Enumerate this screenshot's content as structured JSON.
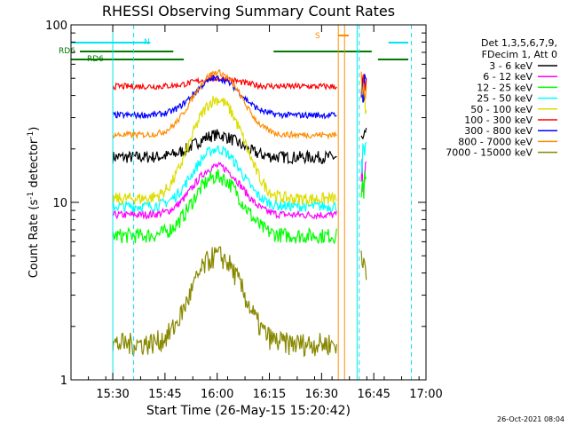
{
  "chart_data": {
    "type": "line",
    "title": "RHESSI Observing Summary Count Rates",
    "xlabel": "Start Time (26-May-15 15:20:42)",
    "ylabel": "Count Rate (s",
    "ylabel_sup": "-1",
    "ylabel_tail": " detector",
    "ylabel_end": ")",
    "yscale": "log",
    "xlim_minutes": [
      15.3,
      17.0
    ],
    "ylim": [
      1,
      100
    ],
    "x_ticks": [
      {
        "label": "15:30",
        "t": 15.5
      },
      {
        "label": "15:45",
        "t": 15.75
      },
      {
        "label": "16:00",
        "t": 16.0
      },
      {
        "label": "16:15",
        "t": 16.25
      },
      {
        "label": "16:30",
        "t": 16.5
      },
      {
        "label": "16:45",
        "t": 16.75
      },
      {
        "label": "17:00",
        "t": 17.0
      }
    ],
    "y_ticks": [
      {
        "label": "1",
        "v": 1
      },
      {
        "label": "10",
        "v": 10
      },
      {
        "label": "100",
        "v": 100
      }
    ],
    "legend_header": [
      "Det 1,3,5,6,7,9,",
      "FDecim 1, Att 0"
    ],
    "legend_position": "right",
    "timestamp": "26-Oct-2021 08:04",
    "flags": [
      {
        "label": "N",
        "color": "#00e5ee"
      },
      {
        "label": "RD6",
        "color": "#007a00"
      },
      {
        "label": "RD6",
        "color": "#007a00"
      },
      {
        "label": "S",
        "color": "#ff8c00"
      }
    ],
    "series": [
      {
        "name": "3 - 6 keV",
        "color": "#000000",
        "base": 18,
        "peak": 24,
        "noise": 0.08
      },
      {
        "name": "6 - 12 keV",
        "color": "#ff00ff",
        "base": 8.5,
        "peak": 16,
        "noise": 0.05
      },
      {
        "name": "12 - 25 keV",
        "color": "#00ff00",
        "base": 6.5,
        "peak": 14,
        "noise": 0.1
      },
      {
        "name": "25 - 50 keV",
        "color": "#00ffff",
        "base": 9.5,
        "peak": 20,
        "noise": 0.07
      },
      {
        "name": "50 - 100 keV",
        "color": "#dddd00",
        "base": 10.5,
        "peak": 38,
        "noise": 0.08
      },
      {
        "name": "100 - 300 keV",
        "color": "#ff0000",
        "base": 45,
        "peak": 50,
        "noise": 0.04
      },
      {
        "name": "300 - 800 keV",
        "color": "#0000ff",
        "base": 31,
        "peak": 50,
        "noise": 0.04
      },
      {
        "name": "800 - 7000 keV",
        "color": "#ff8c00",
        "base": 24,
        "peak": 54,
        "noise": 0.04
      },
      {
        "name": "7000 - 15000 keV",
        "color": "#888800",
        "base": 1.6,
        "peak": 5,
        "noise": 0.15
      }
    ]
  }
}
